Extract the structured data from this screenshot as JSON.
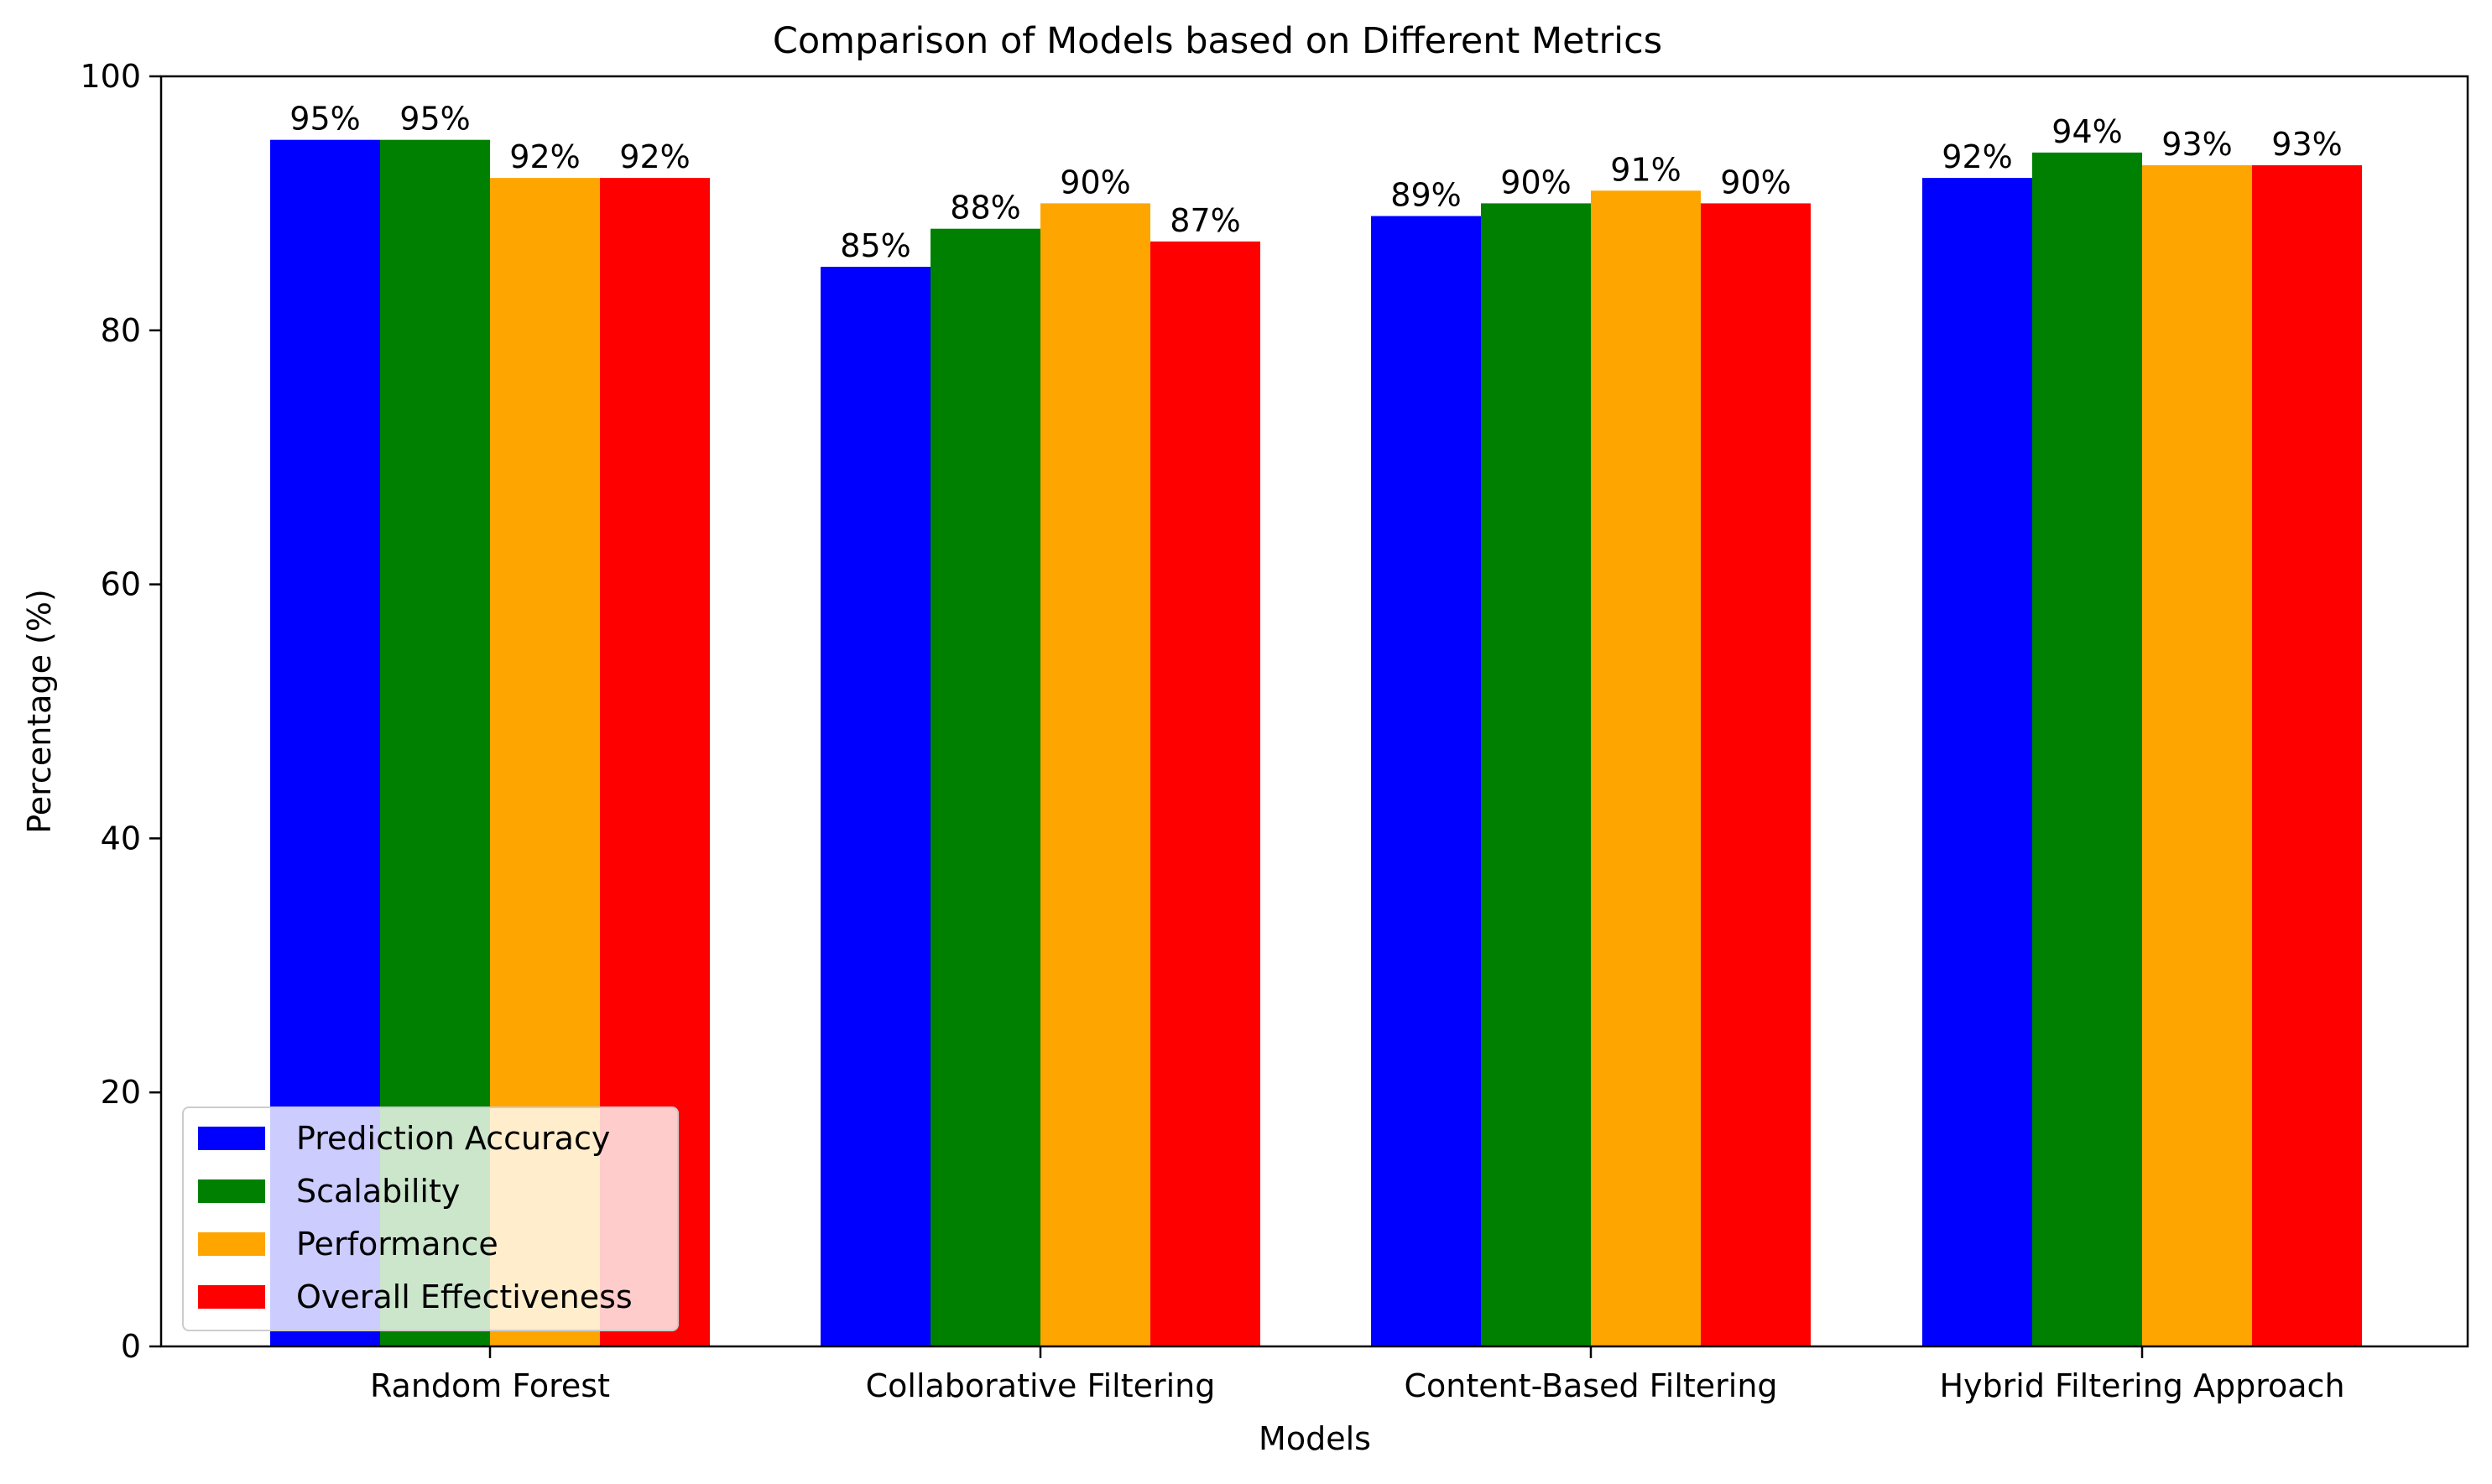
{
  "chart_data": {
    "type": "bar",
    "title": "Comparison of Models based on Different Metrics",
    "xlabel": "Models",
    "ylabel": "Percentage (%)",
    "ylim": [
      0,
      100
    ],
    "yticks": [
      "0",
      "20",
      "40",
      "60",
      "80",
      "100"
    ],
    "categories": [
      "Random Forest",
      "Collaborative Filtering",
      "Content-Based Filtering",
      "Hybrid Filtering Approach"
    ],
    "series": [
      {
        "name": "Prediction Accuracy",
        "color": "#0000ff",
        "values": [
          95,
          85,
          89,
          92
        ],
        "labels": [
          "95%",
          "85%",
          "89%",
          "92%"
        ]
      },
      {
        "name": "Scalability",
        "color": "#008000",
        "values": [
          95,
          88,
          90,
          94
        ],
        "labels": [
          "95%",
          "88%",
          "90%",
          "94%"
        ]
      },
      {
        "name": "Performance",
        "color": "#ffa500",
        "values": [
          92,
          90,
          91,
          93
        ],
        "labels": [
          "92%",
          "90%",
          "91%",
          "93%"
        ]
      },
      {
        "name": "Overall Effectiveness",
        "color": "#ff0000",
        "values": [
          92,
          87,
          90,
          93
        ],
        "labels": [
          "92%",
          "87%",
          "90%",
          "93%"
        ]
      }
    ],
    "grid": false,
    "legend_position": "lower-left"
  }
}
